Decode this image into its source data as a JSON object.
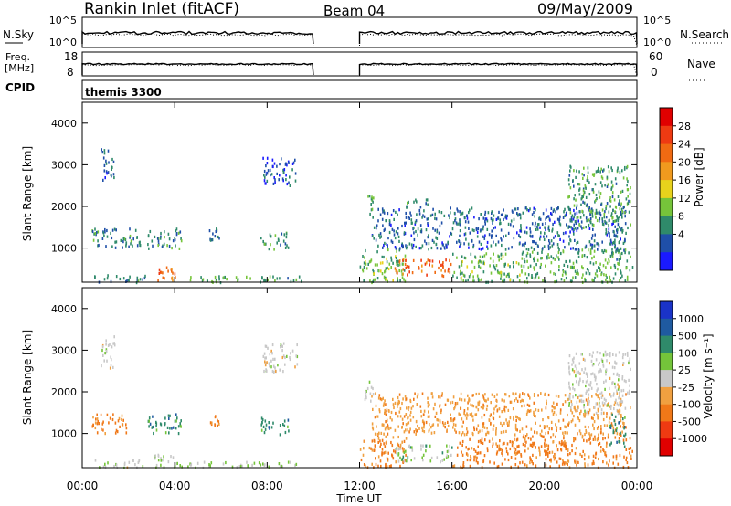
{
  "header": {
    "station": "Rankin Inlet (fitACF)",
    "beam": "Beam 04",
    "date": "09/May/2009"
  },
  "top_panels": {
    "nsky_label": "N.Sky",
    "nsearch_label": "N.Search",
    "freq_label_line1": "Freq.",
    "freq_label_line2": "[MHz]",
    "nave_label": "Nave",
    "cpid_label": "CPID",
    "cpid_value": "themis 3300",
    "noise_ticks_left": [
      "10^5",
      "10^0"
    ],
    "noise_ticks_right": [
      "10^5",
      "10^0"
    ],
    "freq_ticks": [
      "18",
      "8"
    ],
    "nave_ticks": [
      "60",
      "0"
    ]
  },
  "x_axis": {
    "label": "Time UT",
    "ticks": [
      "00:00",
      "04:00",
      "08:00",
      "12:00",
      "16:00",
      "20:00",
      "00:00"
    ]
  },
  "colors": {
    "power": [
      "#1a1aff",
      "#1f4fa8",
      "#2f8a6a",
      "#76c43a",
      "#e8d21c",
      "#f09a1e",
      "#f06a12",
      "#ee3a12",
      "#e00000"
    ],
    "velocity": [
      "#e00000",
      "#ee3a12",
      "#f07818",
      "#f0a040",
      "#c8c8c8",
      "#74c43a",
      "#2f8a6a",
      "#1f5aa0",
      "#1a33c8"
    ]
  },
  "chart_data": [
    {
      "type": "heatmap",
      "name_panel": "power",
      "ylabel": "Slant Range [km]",
      "xlabel": "Time UT",
      "xlim": [
        0,
        24
      ],
      "ylim": [
        180,
        4500
      ],
      "yticks": [
        "1000",
        "2000",
        "3000",
        "4000"
      ],
      "colorbar_label": "Power [dB]",
      "colorbar_ticks": [
        "4",
        "8",
        "12",
        "16",
        "20",
        "24",
        "28"
      ],
      "data_gap_hours": [
        10.0,
        12.0
      ],
      "regions": [
        {
          "t": [
            3.1,
            4.0
          ],
          "r": [
            200,
            600
          ],
          "v": 26
        },
        {
          "t": [
            0.5,
            2.8
          ],
          "r": [
            200,
            400
          ],
          "v": 9
        },
        {
          "t": [
            4.0,
            9.5
          ],
          "r": [
            200,
            350
          ],
          "v": 11
        },
        {
          "t": [
            0.4,
            2.5
          ],
          "r": [
            1000,
            1500
          ],
          "v": 9
        },
        {
          "t": [
            2.8,
            4.3
          ],
          "r": [
            1000,
            1500
          ],
          "v": 10
        },
        {
          "t": [
            5.4,
            5.9
          ],
          "r": [
            1200,
            1500
          ],
          "v": 8
        },
        {
          "t": [
            7.7,
            8.9
          ],
          "r": [
            1000,
            1400
          ],
          "v": 9
        },
        {
          "t": [
            0.8,
            1.4
          ],
          "r": [
            2600,
            3400
          ],
          "v": 7
        },
        {
          "t": [
            7.8,
            9.3
          ],
          "r": [
            2500,
            3200
          ],
          "v": 6
        },
        {
          "t": [
            12.0,
            14.0
          ],
          "r": [
            200,
            1000
          ],
          "v": 13
        },
        {
          "t": [
            13.5,
            16.0
          ],
          "r": [
            350,
            750
          ],
          "v": 27
        },
        {
          "t": [
            16.0,
            19.0
          ],
          "r": [
            200,
            900
          ],
          "v": 13
        },
        {
          "t": [
            19.0,
            23.8
          ],
          "r": [
            200,
            1000
          ],
          "v": 12
        },
        {
          "t": [
            12.5,
            23.5
          ],
          "r": [
            1000,
            2000
          ],
          "v": 7
        },
        {
          "t": [
            21.0,
            23.7
          ],
          "r": [
            1500,
            3000
          ],
          "v": 11
        },
        {
          "t": [
            12.2,
            12.6
          ],
          "r": [
            1800,
            2300
          ],
          "v": 12
        },
        {
          "t": [
            14.0,
            15.0
          ],
          "r": [
            2000,
            2200
          ],
          "v": 9
        },
        {
          "t": [
            22.8,
            23.5
          ],
          "r": [
            700,
            1500
          ],
          "v": 8
        }
      ]
    },
    {
      "type": "heatmap",
      "name_panel": "velocity",
      "ylabel": "Slant Range [km]",
      "xlabel": "Time UT",
      "xlim": [
        0,
        24
      ],
      "ylim": [
        180,
        4500
      ],
      "yticks": [
        "1000",
        "2000",
        "3000",
        "4000"
      ],
      "colorbar_label": "Velocity [m s⁻¹]",
      "colorbar_ticks": [
        "1000",
        "500",
        "100",
        "25",
        "-25",
        "-100",
        "-500",
        "-1000"
      ],
      "data_gap_hours": [
        10.0,
        12.0
      ],
      "regions": [
        {
          "t": [
            3.1,
            4.0
          ],
          "r": [
            200,
            600
          ],
          "v": 25
        },
        {
          "t": [
            0.5,
            2.8
          ],
          "r": [
            200,
            400
          ],
          "v": 5
        },
        {
          "t": [
            4.0,
            9.5
          ],
          "r": [
            200,
            350
          ],
          "v": 20
        },
        {
          "t": [
            0.4,
            1.9
          ],
          "r": [
            1000,
            1500
          ],
          "v": -150
        },
        {
          "t": [
            2.8,
            4.3
          ],
          "r": [
            1000,
            1500
          ],
          "v": 300
        },
        {
          "t": [
            5.4,
            5.9
          ],
          "r": [
            1200,
            1500
          ],
          "v": -200
        },
        {
          "t": [
            7.7,
            8.9
          ],
          "r": [
            1000,
            1400
          ],
          "v": 300
        },
        {
          "t": [
            0.8,
            1.4
          ],
          "r": [
            2600,
            3400
          ],
          "v": 0
        },
        {
          "t": [
            7.8,
            9.3
          ],
          "r": [
            2500,
            3200
          ],
          "v": 0
        },
        {
          "t": [
            12.0,
            14.0
          ],
          "r": [
            200,
            1000
          ],
          "v": -120
        },
        {
          "t": [
            13.5,
            16.0
          ],
          "r": [
            350,
            750
          ],
          "v": 50
        },
        {
          "t": [
            16.0,
            19.0
          ],
          "r": [
            200,
            900
          ],
          "v": -200
        },
        {
          "t": [
            19.0,
            23.8
          ],
          "r": [
            200,
            1000
          ],
          "v": -150
        },
        {
          "t": [
            12.5,
            23.5
          ],
          "r": [
            1000,
            2000
          ],
          "v": -80
        },
        {
          "t": [
            21.0,
            23.7
          ],
          "r": [
            1500,
            3000
          ],
          "v": 0
        },
        {
          "t": [
            12.2,
            12.6
          ],
          "r": [
            1800,
            2300
          ],
          "v": 0
        },
        {
          "t": [
            22.8,
            23.5
          ],
          "r": [
            700,
            1500
          ],
          "v": 300
        }
      ]
    }
  ]
}
